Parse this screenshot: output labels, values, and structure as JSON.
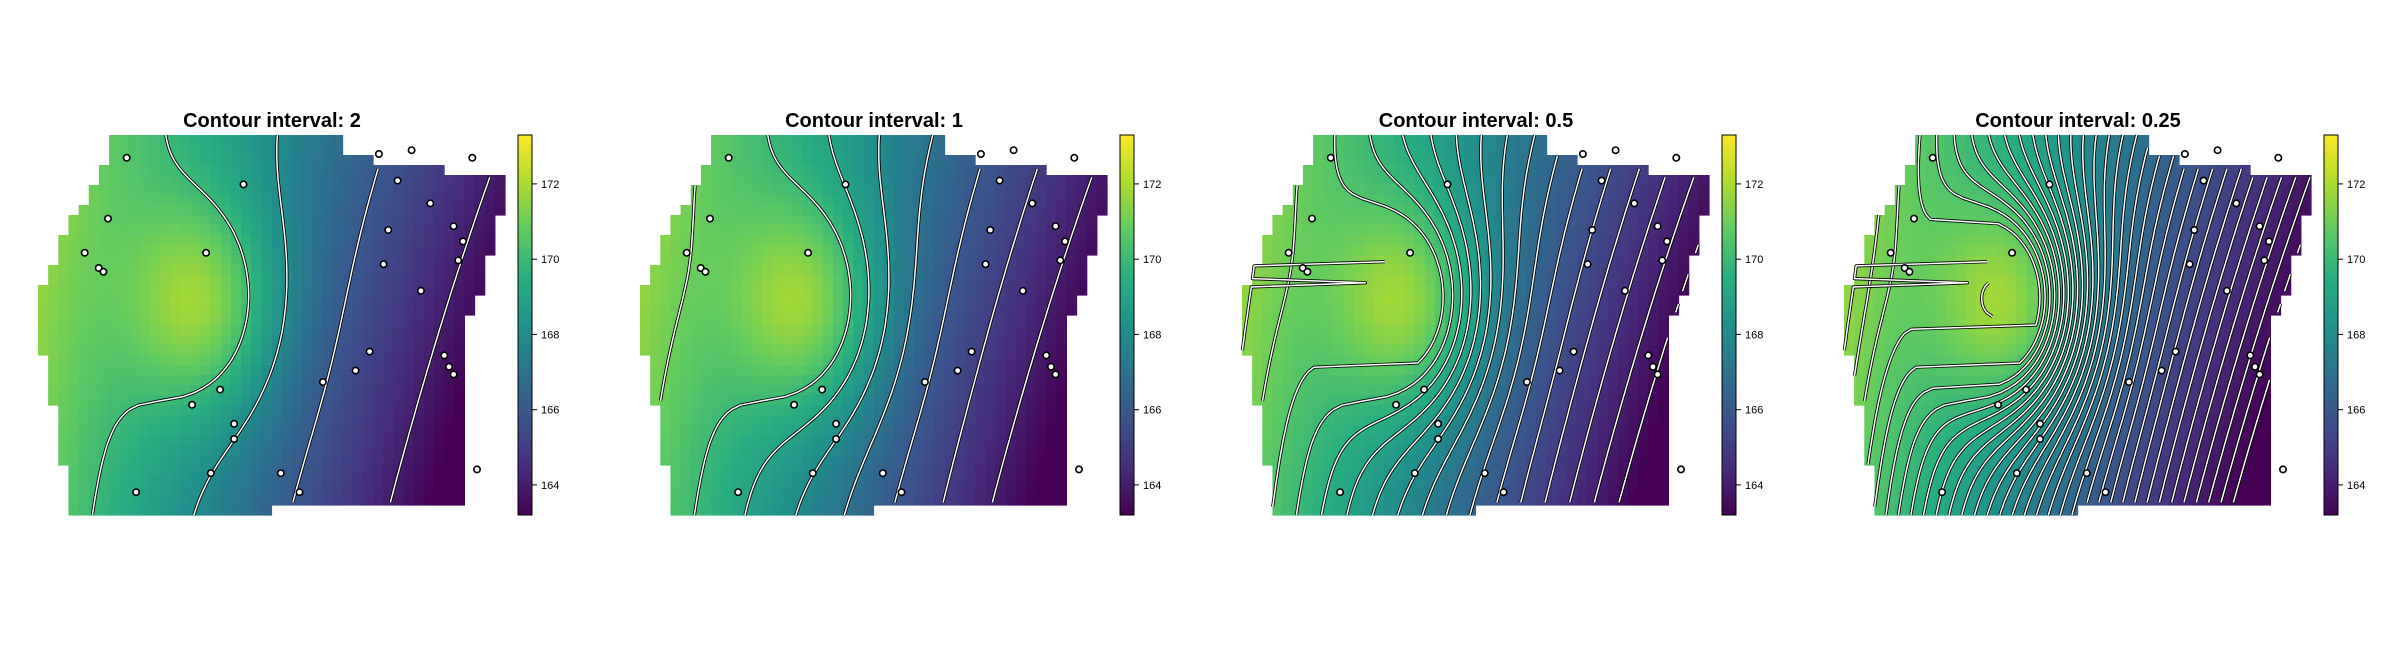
{
  "chart_data": [
    {
      "type": "heatmap",
      "title": "Contour interval: 2",
      "contour_interval": 2,
      "zlim": [
        163.2,
        173.3
      ],
      "legend_ticks": [
        "164",
        "166",
        "168",
        "170",
        "172"
      ],
      "legend_placement": "right",
      "colormap": "viridis",
      "grid": false,
      "axes_visible": false
    },
    {
      "type": "heatmap",
      "title": "Contour interval: 1",
      "contour_interval": 1,
      "zlim": [
        163.2,
        173.3
      ],
      "legend_ticks": [
        "164",
        "166",
        "168",
        "170",
        "172"
      ],
      "legend_placement": "right",
      "colormap": "viridis",
      "grid": false,
      "axes_visible": false
    },
    {
      "type": "heatmap",
      "title": "Contour interval: 0.5",
      "contour_interval": 0.5,
      "zlim": [
        163.2,
        173.3
      ],
      "legend_ticks": [
        "164",
        "166",
        "168",
        "170",
        "172"
      ],
      "legend_placement": "right",
      "colormap": "viridis",
      "grid": false,
      "axes_visible": false
    },
    {
      "type": "heatmap",
      "title": "Contour interval: 0.25",
      "contour_interval": 0.25,
      "zlim": [
        163.2,
        173.3
      ],
      "legend_ticks": [
        "164",
        "166",
        "168",
        "170",
        "172"
      ],
      "legend_placement": "right",
      "colormap": "viridis",
      "grid": false,
      "axes_visible": false
    }
  ],
  "colors": {
    "contour_line": "#ffffff",
    "contour_casing": "#000000",
    "point_fill": "#ffffff",
    "point_stroke": "#000000",
    "background": "#ffffff"
  }
}
